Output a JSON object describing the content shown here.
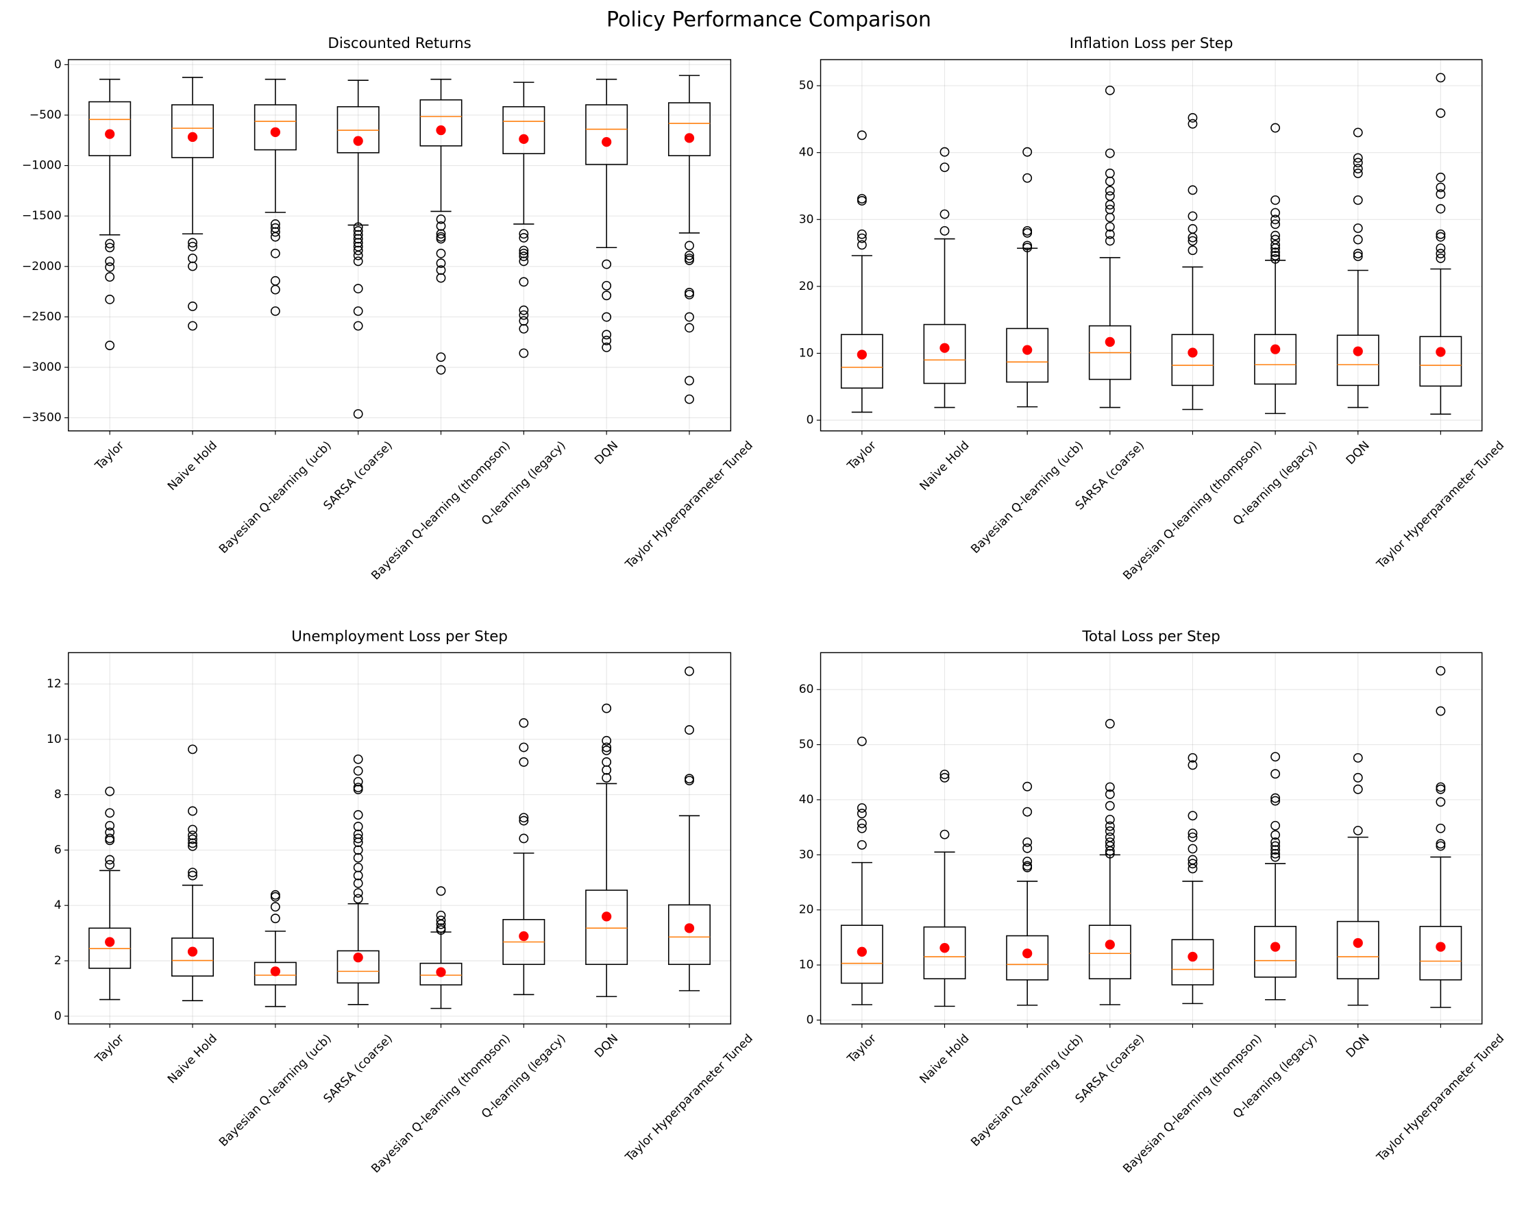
{
  "title": "Policy Performance Comparison",
  "chart_data": [
    {
      "type": "box",
      "title": "Discounted Returns",
      "grid": true,
      "box_color": "#000000",
      "median_color": "#ff7f0e",
      "mean_color": "#ff0000",
      "categories": [
        "Taylor",
        "Naive Hold",
        "Bayesian Q-learning (ucb)",
        "SARSA (coarse)",
        "Bayesian Q-learning (thompson)",
        "Q-learning (legacy)",
        "DQN",
        "Taylor Hyperparameter Tuned"
      ],
      "ylim": [
        -3630,
        50
      ],
      "yticks": [
        {
          "value": -3500,
          "label": "−3500"
        },
        {
          "value": -3000,
          "label": "−3000"
        },
        {
          "value": -2500,
          "label": "−2500"
        },
        {
          "value": -2000,
          "label": "−2000"
        },
        {
          "value": -1500,
          "label": "−1500"
        },
        {
          "value": -1000,
          "label": "−1000"
        },
        {
          "value": -500,
          "label": "−500"
        },
        0
      ],
      "boxes": [
        {
          "whislo": -1687,
          "q1": -902,
          "med": -543,
          "q3": -368,
          "whishi": -145,
          "mean": -688,
          "fliers": [
            -1774,
            -1813,
            -1949,
            -2007,
            -2104,
            -2327,
            -2783
          ]
        },
        {
          "whislo": -1677,
          "q1": -921,
          "med": -630,
          "q3": -398,
          "whishi": -126,
          "mean": -717,
          "fliers": [
            -1765,
            -1803,
            -1920,
            -1998,
            -2395,
            -2589
          ]
        },
        {
          "whislo": -1464,
          "q1": -844,
          "med": -562,
          "q3": -398,
          "whishi": -145,
          "mean": -669,
          "fliers": [
            -1580,
            -1619,
            -1658,
            -1707,
            -1871,
            -2143,
            -2230,
            -2443
          ]
        },
        {
          "whislo": -1590,
          "q1": -873,
          "med": -650,
          "q3": -417,
          "whishi": -155,
          "mean": -756,
          "fliers": [
            -1610,
            -1648,
            -1687,
            -1726,
            -1765,
            -1803,
            -1842,
            -1891,
            -1949,
            -2220,
            -2443,
            -2589,
            -3462
          ]
        },
        {
          "whislo": -1454,
          "q1": -805,
          "med": -514,
          "q3": -349,
          "whishi": -145,
          "mean": -650,
          "fliers": [
            -1532,
            -1600,
            -1677,
            -1707,
            -1726,
            -1871,
            -1968,
            -2036,
            -2114,
            -2899,
            -3025
          ]
        },
        {
          "whislo": -1580,
          "q1": -882,
          "med": -562,
          "q3": -417,
          "whishi": -175,
          "mean": -737,
          "fliers": [
            -1677,
            -1716,
            -1842,
            -1871,
            -1900,
            -1949,
            -2153,
            -2434,
            -2482,
            -2540,
            -2618,
            -2860
          ]
        },
        {
          "whislo": -1813,
          "q1": -989,
          "med": -640,
          "q3": -398,
          "whishi": -145,
          "mean": -766,
          "fliers": [
            -1978,
            -2191,
            -2288,
            -2501,
            -2676,
            -2734,
            -2802
          ]
        },
        {
          "whislo": -1668,
          "q1": -902,
          "med": -582,
          "q3": -378,
          "whishi": -107,
          "mean": -727,
          "fliers": [
            -1794,
            -1891,
            -1920,
            -1939,
            -2259,
            -2279,
            -2501,
            -2608,
            -3132,
            -3316
          ]
        }
      ]
    },
    {
      "type": "box",
      "title": "Inflation Loss per Step",
      "grid": true,
      "box_color": "#000000",
      "median_color": "#ff7f0e",
      "mean_color": "#ff0000",
      "categories": [
        "Taylor",
        "Naive Hold",
        "Bayesian Q-learning (ucb)",
        "SARSA (coarse)",
        "Bayesian Q-learning (thompson)",
        "Q-learning (legacy)",
        "DQN",
        "Taylor Hyperparameter Tuned"
      ],
      "ylim": [
        -1.6,
        53.9
      ],
      "yticks": [
        0,
        10,
        20,
        30,
        40,
        50
      ],
      "boxes": [
        {
          "whislo": 1.2,
          "q1": 4.8,
          "med": 7.9,
          "q3": 12.8,
          "whishi": 24.6,
          "mean": 9.8,
          "fliers": [
            42.6,
            33.1,
            32.8,
            27.8,
            27.2,
            26.2
          ]
        },
        {
          "whislo": 1.9,
          "q1": 5.5,
          "med": 9.0,
          "q3": 14.3,
          "whishi": 27.1,
          "mean": 10.8,
          "fliers": [
            40.1,
            37.8,
            30.8,
            28.3
          ]
        },
        {
          "whislo": 2.0,
          "q1": 5.7,
          "med": 8.7,
          "q3": 13.7,
          "whishi": 25.7,
          "mean": 10.5,
          "fliers": [
            40.1,
            36.2,
            28.3,
            28.0,
            26.1,
            25.8
          ]
        },
        {
          "whislo": 1.9,
          "q1": 6.1,
          "med": 10.1,
          "q3": 14.1,
          "whishi": 24.3,
          "mean": 11.7,
          "fliers": [
            49.3,
            39.9,
            36.9,
            35.7,
            34.3,
            33.5,
            32.2,
            31.5,
            30.3,
            28.9,
            27.8,
            26.8
          ]
        },
        {
          "whislo": 1.6,
          "q1": 5.2,
          "med": 8.2,
          "q3": 12.8,
          "whishi": 22.9,
          "mean": 10.1,
          "fliers": [
            45.2,
            44.3,
            34.4,
            30.5,
            28.6,
            27.3,
            26.8,
            25.4
          ]
        },
        {
          "whislo": 1.0,
          "q1": 5.4,
          "med": 8.3,
          "q3": 12.8,
          "whishi": 23.9,
          "mean": 10.6,
          "fliers": [
            43.7,
            32.9,
            31.0,
            30.0,
            29.3,
            27.6,
            27.0,
            26.2,
            25.7,
            25.1,
            24.6,
            24.1
          ]
        },
        {
          "whislo": 1.9,
          "q1": 5.2,
          "med": 8.3,
          "q3": 12.7,
          "whishi": 22.4,
          "mean": 10.3,
          "fliers": [
            43.0,
            39.2,
            38.5,
            37.6,
            36.9,
            32.9,
            28.7,
            27.0,
            24.9,
            24.5
          ]
        },
        {
          "whislo": 0.9,
          "q1": 5.1,
          "med": 8.2,
          "q3": 12.5,
          "whishi": 22.6,
          "mean": 10.2,
          "fliers": [
            51.2,
            45.9,
            36.3,
            34.8,
            33.8,
            31.6,
            27.8,
            27.4,
            25.7,
            24.9,
            24.2
          ]
        }
      ]
    },
    {
      "type": "box",
      "title": "Unemployment Loss per Step",
      "grid": true,
      "box_color": "#000000",
      "median_color": "#ff7f0e",
      "mean_color": "#ff0000",
      "categories": [
        "Taylor",
        "Naive Hold",
        "Bayesian Q-learning (ucb)",
        "SARSA (coarse)",
        "Bayesian Q-learning (thompson)",
        "Q-learning (legacy)",
        "DQN",
        "Taylor Hyperparameter Tuned"
      ],
      "ylim": [
        -0.28,
        13.13
      ],
      "yticks": [
        0,
        2,
        4,
        6,
        8,
        10,
        12
      ],
      "boxes": [
        {
          "whislo": 0.6,
          "q1": 1.73,
          "med": 2.44,
          "q3": 3.18,
          "whishi": 5.26,
          "mean": 2.68,
          "fliers": [
            8.12,
            7.34,
            6.88,
            6.64,
            6.42,
            6.35,
            5.65,
            5.47
          ]
        },
        {
          "whislo": 0.56,
          "q1": 1.45,
          "med": 2.01,
          "q3": 2.82,
          "whishi": 4.73,
          "mean": 2.33,
          "fliers": [
            9.64,
            7.41,
            6.74,
            6.53,
            6.39,
            6.25,
            6.14,
            5.19,
            5.08
          ]
        },
        {
          "whislo": 0.35,
          "q1": 1.13,
          "med": 1.48,
          "q3": 1.94,
          "whishi": 3.07,
          "mean": 1.62,
          "fliers": [
            4.38,
            4.31,
            3.95,
            3.53
          ]
        },
        {
          "whislo": 0.42,
          "q1": 1.2,
          "med": 1.62,
          "q3": 2.36,
          "whishi": 4.06,
          "mean": 2.12,
          "fliers": [
            9.28,
            8.86,
            8.47,
            8.26,
            8.19,
            7.27,
            6.85,
            6.57,
            6.42,
            6.28,
            6.0,
            5.72,
            5.37,
            5.08,
            4.8,
            4.45,
            4.24
          ]
        },
        {
          "whislo": 0.28,
          "q1": 1.13,
          "med": 1.48,
          "q3": 1.91,
          "whishi": 3.04,
          "mean": 1.59,
          "fliers": [
            4.52,
            3.64,
            3.46,
            3.32,
            3.18,
            3.11
          ]
        },
        {
          "whislo": 0.78,
          "q1": 1.87,
          "med": 2.68,
          "q3": 3.49,
          "whishi": 5.89,
          "mean": 2.89,
          "fliers": [
            10.59,
            9.71,
            9.18,
            7.17,
            7.06,
            6.42
          ]
        },
        {
          "whislo": 0.71,
          "q1": 1.87,
          "med": 3.18,
          "q3": 4.55,
          "whishi": 8.4,
          "mean": 3.6,
          "fliers": [
            11.12,
            9.95,
            9.71,
            9.6,
            9.18,
            8.89,
            8.61
          ]
        },
        {
          "whislo": 0.92,
          "q1": 1.87,
          "med": 2.86,
          "q3": 4.02,
          "whishi": 7.24,
          "mean": 3.18,
          "fliers": [
            12.46,
            10.34,
            8.58,
            8.51
          ]
        }
      ]
    },
    {
      "type": "box",
      "title": "Total Loss per Step",
      "grid": true,
      "box_color": "#000000",
      "median_color": "#ff7f0e",
      "mean_color": "#ff0000",
      "categories": [
        "Taylor",
        "Naive Hold",
        "Bayesian Q-learning (ucb)",
        "SARSA (coarse)",
        "Bayesian Q-learning (thompson)",
        "Q-learning (legacy)",
        "DQN",
        "Taylor Hyperparameter Tuned"
      ],
      "ylim": [
        -0.7,
        66.7
      ],
      "yticks": [
        0,
        10,
        20,
        30,
        40,
        50,
        60
      ],
      "boxes": [
        {
          "whislo": 2.8,
          "q1": 6.7,
          "med": 10.3,
          "q3": 17.2,
          "whishi": 28.6,
          "mean": 12.4,
          "fliers": [
            50.6,
            38.5,
            37.5,
            35.7,
            34.8,
            31.8
          ]
        },
        {
          "whislo": 2.5,
          "q1": 7.5,
          "med": 11.5,
          "q3": 16.9,
          "whishi": 30.5,
          "mean": 13.1,
          "fliers": [
            44.6,
            44.0,
            33.7
          ]
        },
        {
          "whislo": 2.7,
          "q1": 7.3,
          "med": 10.1,
          "q3": 15.3,
          "whishi": 25.2,
          "mean": 12.1,
          "fliers": [
            42.4,
            37.8,
            32.3,
            31.2,
            28.8,
            28.0,
            27.7
          ]
        },
        {
          "whislo": 2.8,
          "q1": 7.5,
          "med": 12.1,
          "q3": 17.2,
          "whishi": 30.0,
          "mean": 13.7,
          "fliers": [
            53.8,
            42.3,
            41.0,
            38.9,
            36.4,
            35.2,
            34.3,
            33.2,
            32.3,
            31.6,
            30.7,
            30.2
          ]
        },
        {
          "whislo": 3.0,
          "q1": 6.4,
          "med": 9.2,
          "q3": 14.6,
          "whishi": 25.2,
          "mean": 11.5,
          "fliers": [
            47.6,
            46.3,
            37.1,
            33.9,
            33.2,
            31.1,
            29.1,
            28.4,
            27.5
          ]
        },
        {
          "whislo": 3.7,
          "q1": 7.8,
          "med": 10.8,
          "q3": 17.0,
          "whishi": 28.4,
          "mean": 13.3,
          "fliers": [
            47.8,
            44.7,
            40.3,
            39.8,
            35.3,
            33.6,
            32.3,
            31.6,
            30.9,
            30.2,
            29.6
          ]
        },
        {
          "whislo": 2.7,
          "q1": 7.5,
          "med": 11.5,
          "q3": 17.9,
          "whishi": 33.2,
          "mean": 14.0,
          "fliers": [
            47.6,
            44.0,
            41.9,
            34.4
          ]
        },
        {
          "whislo": 2.3,
          "q1": 7.3,
          "med": 10.7,
          "q3": 17.0,
          "whishi": 29.6,
          "mean": 13.3,
          "fliers": [
            63.4,
            56.1,
            42.3,
            41.9,
            39.6,
            34.8,
            32.0,
            31.6
          ]
        }
      ]
    }
  ]
}
